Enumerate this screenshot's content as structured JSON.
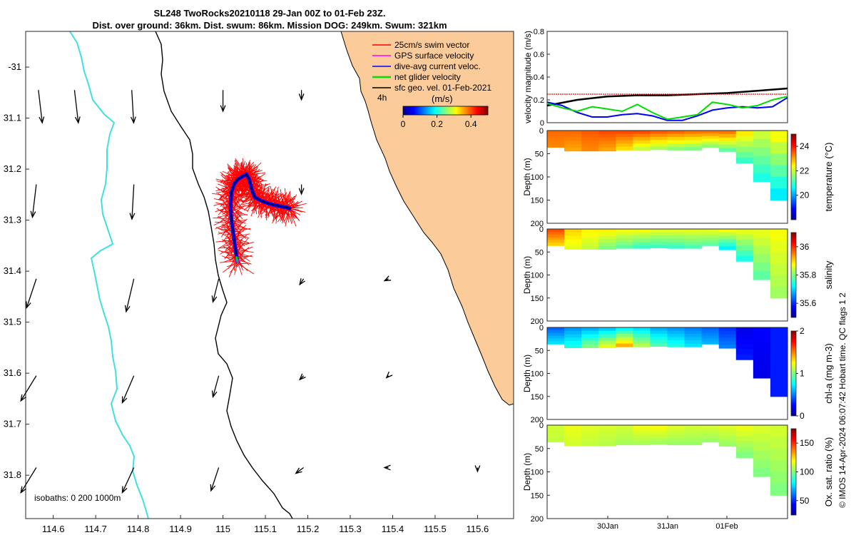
{
  "title": {
    "line1": "SL248 TwoRocks20210118 29-Jan 00Z to 01-Feb 23Z.",
    "line2": "Dist. over ground: 36km. Dist. swum: 86km. Mission DOG: 249km. Swum: 321km"
  },
  "credit": "© IMOS 14-Apr-2024 06:07:42 Hobart time. QC flags 1  2",
  "colors": {
    "land": "#fbcb9a",
    "isobath_shallow": "#40e0e0",
    "isobath_deep": "#000000",
    "swim_vector": "#ff0000",
    "gps_velocity": "#ff00ff",
    "dive_avg": "#0000ff",
    "net_velocity": "#00dd00",
    "sfc_geo": "#000000"
  },
  "chart_data": [
    {
      "type": "map",
      "x_ticks": [
        "114.6",
        "114.7",
        "114.8",
        "114.9",
        "115",
        "115.1",
        "115.2",
        "115.3",
        "115.4",
        "115.5",
        "115.6"
      ],
      "y_ticks": [
        "-31",
        "31.1",
        "31.2",
        "31.3",
        "31.4",
        "31.5",
        "31.6",
        "31.7",
        "31.8"
      ],
      "xlim": [
        114.535,
        115.685
      ],
      "ylim": [
        -31.885,
        -30.93
      ],
      "legend": {
        "entries": [
          "25cm/s swim vector",
          "GPS surface velocity",
          "dive-avg current veloc.",
          "net glider velocity",
          "sfc geo. vel. 01-Feb-2021"
        ],
        "time_step": "4h",
        "colorbar_label": "(m/s)",
        "colorbar_ticks": [
          "0",
          "0.2",
          "0.4"
        ],
        "colorbar_range": [
          0,
          0.5
        ]
      },
      "isobath_label": "isobaths: 0   200  1000m",
      "track": {
        "lon": [
          115.035,
          115.03,
          115.025,
          115.02,
          115.018,
          115.02,
          115.026,
          115.035,
          115.045,
          115.055,
          115.062,
          115.068,
          115.075,
          115.09,
          115.11,
          115.13,
          115.15,
          115.16
        ],
        "lat": [
          -31.385,
          -31.36,
          -31.33,
          -31.3,
          -31.27,
          -31.245,
          -31.23,
          -31.22,
          -31.215,
          -31.21,
          -31.22,
          -31.24,
          -31.255,
          -31.262,
          -31.268,
          -31.272,
          -31.275,
          -31.278
        ]
      },
      "current_vectors": [
        {
          "lon": 114.565,
          "lat": -31.045,
          "u": 0.02,
          "v": -0.17
        },
        {
          "lon": 114.65,
          "lat": -31.045,
          "u": 0.02,
          "v": -0.17
        },
        {
          "lon": 114.785,
          "lat": -31.045,
          "u": 0.01,
          "v": -0.17
        },
        {
          "lon": 115.0,
          "lat": -31.045,
          "u": 0.0,
          "v": -0.11
        },
        {
          "lon": 115.185,
          "lat": -31.045,
          "u": 0.0,
          "v": -0.05
        },
        {
          "lon": 114.56,
          "lat": -31.23,
          "u": -0.02,
          "v": -0.17
        },
        {
          "lon": 114.79,
          "lat": -31.23,
          "u": -0.01,
          "v": -0.18
        },
        {
          "lon": 115.185,
          "lat": -31.23,
          "u": 0.0,
          "v": -0.05
        },
        {
          "lon": 114.56,
          "lat": -31.415,
          "u": -0.05,
          "v": -0.15
        },
        {
          "lon": 114.79,
          "lat": -31.415,
          "u": -0.04,
          "v": -0.17
        },
        {
          "lon": 114.99,
          "lat": -31.415,
          "u": -0.03,
          "v": -0.12
        },
        {
          "lon": 115.19,
          "lat": -31.415,
          "u": -0.02,
          "v": -0.03
        },
        {
          "lon": 115.39,
          "lat": -31.415,
          "u": -0.02,
          "v": -0.01
        },
        {
          "lon": 114.56,
          "lat": -31.605,
          "u": -0.08,
          "v": -0.13
        },
        {
          "lon": 114.79,
          "lat": -31.605,
          "u": -0.06,
          "v": -0.14
        },
        {
          "lon": 114.99,
          "lat": -31.605,
          "u": -0.03,
          "v": -0.11
        },
        {
          "lon": 115.19,
          "lat": -31.605,
          "u": -0.02,
          "v": -0.02
        },
        {
          "lon": 115.39,
          "lat": -31.605,
          "u": -0.01,
          "v": -0.01
        },
        {
          "lon": 114.56,
          "lat": -31.785,
          "u": -0.08,
          "v": -0.13
        },
        {
          "lon": 114.79,
          "lat": -31.785,
          "u": -0.06,
          "v": -0.13
        },
        {
          "lon": 114.99,
          "lat": -31.785,
          "u": -0.04,
          "v": -0.12
        },
        {
          "lon": 115.19,
          "lat": -31.785,
          "u": -0.04,
          "v": -0.03
        },
        {
          "lon": 115.39,
          "lat": -31.785,
          "u": -0.02,
          "v": 0.0
        },
        {
          "lon": 115.6,
          "lat": -31.785,
          "u": 0.0,
          "v": -0.02
        }
      ]
    },
    {
      "type": "line",
      "ylabel": "velocity magnitude (m/s)",
      "ylim": [
        0,
        0.8
      ],
      "y_ticks": [
        "0",
        "0.2",
        "0.4",
        "0.6",
        "0.8"
      ],
      "xlim": [
        0,
        4
      ],
      "series": [
        {
          "color": "#000000",
          "x": [
            0,
            0.5,
            1,
            1.5,
            2,
            2.5,
            3,
            3.5,
            4
          ],
          "y": [
            0.15,
            0.2,
            0.23,
            0.24,
            0.24,
            0.25,
            0.26,
            0.28,
            0.3
          ]
        },
        {
          "color": "#ff0000",
          "x": [
            0,
            4
          ],
          "y": [
            0.25,
            0.25
          ]
        },
        {
          "color": "#0000ff",
          "x": [
            0,
            0.25,
            0.5,
            0.75,
            1,
            1.25,
            1.5,
            1.75,
            2,
            2.25,
            2.5,
            2.75,
            3,
            3.25,
            3.5,
            3.75,
            4
          ],
          "y": [
            0.18,
            0.15,
            0.09,
            0.05,
            0.05,
            0.07,
            0.08,
            0.06,
            0.02,
            0.02,
            0.06,
            0.11,
            0.13,
            0.14,
            0.13,
            0.14,
            0.22
          ]
        },
        {
          "color": "#00dd00",
          "x": [
            0,
            0.25,
            0.5,
            0.75,
            1,
            1.25,
            1.5,
            1.75,
            2,
            2.25,
            2.5,
            2.75,
            3,
            3.25,
            3.5,
            3.75,
            4
          ],
          "y": [
            0.17,
            0.13,
            0.1,
            0.14,
            0.12,
            0.1,
            0.16,
            0.09,
            0.03,
            0.05,
            0.07,
            0.18,
            0.16,
            0.13,
            0.15,
            0.2,
            0.23
          ]
        }
      ]
    },
    {
      "type": "heatmap",
      "ylabel": "Depth (m)",
      "ylim": [
        200,
        0
      ],
      "y_ticks": [
        "0",
        "50",
        "100",
        "150",
        "200"
      ],
      "colorbar_label": "temperature (°C)",
      "colorbar_range": [
        18,
        25
      ],
      "colorbar_ticks": [
        "20",
        "22",
        "24"
      ],
      "bottom_depth": [
        36,
        44,
        44,
        44,
        42,
        42,
        41,
        42,
        42,
        36,
        45,
        70,
        110,
        150
      ],
      "surface_values": [
        23.4,
        23.4,
        23.5,
        23.6,
        23.6,
        23.6,
        23.5,
        23.4,
        23.3,
        23.3,
        23.3,
        22.5,
        22.0,
        22.3
      ],
      "deep_values": [
        23.2,
        23.0,
        23.2,
        23.0,
        22.6,
        22.0,
        21.8,
        21.6,
        21.5,
        21.6,
        21.3,
        21.0,
        20.8,
        20.5
      ]
    },
    {
      "type": "heatmap",
      "ylabel": "Depth (m)",
      "ylim": [
        200,
        0
      ],
      "y_ticks": [
        "0",
        "50",
        "100",
        "150",
        "200"
      ],
      "colorbar_label": "salinity",
      "colorbar_range": [
        35.5,
        36.1
      ],
      "colorbar_ticks": [
        "35.6",
        "35.8",
        "36"
      ],
      "bottom_depth": [
        36,
        44,
        44,
        44,
        42,
        42,
        41,
        42,
        42,
        36,
        45,
        70,
        110,
        150
      ],
      "surface_values": [
        35.98,
        35.9,
        35.88,
        35.88,
        35.87,
        35.87,
        35.86,
        35.86,
        35.86,
        35.86,
        35.87,
        35.86,
        35.86,
        35.87
      ],
      "deep_values": [
        35.9,
        35.86,
        35.84,
        35.8,
        35.78,
        35.76,
        35.76,
        35.76,
        35.77,
        35.78,
        35.72,
        35.74,
        35.78,
        35.82
      ]
    },
    {
      "type": "heatmap",
      "ylabel": "Depth (m)",
      "ylim": [
        200,
        0
      ],
      "y_ticks": [
        "0",
        "50",
        "100",
        "150",
        "200"
      ],
      "colorbar_label": "chl-a (mg m-3)",
      "colorbar_range": [
        0,
        2
      ],
      "colorbar_ticks": [
        "0",
        "1",
        "2"
      ],
      "bottom_depth": [
        36,
        44,
        44,
        44,
        42,
        42,
        41,
        42,
        42,
        36,
        45,
        70,
        110,
        150
      ],
      "surface_values": [
        0.45,
        0.55,
        0.6,
        0.65,
        0.75,
        0.7,
        0.6,
        0.55,
        0.5,
        0.45,
        0.35,
        0.2,
        0.25,
        0.3
      ],
      "deep_values": [
        0.7,
        0.8,
        1.0,
        1.2,
        1.4,
        1.1,
        0.9,
        0.8,
        0.7,
        0.6,
        0.5,
        0.3,
        0.2,
        0.3
      ]
    },
    {
      "type": "heatmap",
      "ylabel": "Depth (m)",
      "ylim": [
        200,
        0
      ],
      "y_ticks": [
        "0",
        "50",
        "100",
        "150",
        "200"
      ],
      "x_ticks": [
        "30Jan",
        "31Jan",
        "01Feb"
      ],
      "colorbar_label": "Ox. sat. ratio (%)",
      "colorbar_range": [
        25,
        175
      ],
      "colorbar_ticks": [
        "50",
        "100",
        "150"
      ],
      "bottom_depth": [
        36,
        44,
        44,
        44,
        42,
        42,
        41,
        42,
        42,
        36,
        45,
        70,
        110,
        150
      ],
      "surface_values": [
        112,
        116,
        114,
        113,
        112,
        117,
        118,
        114,
        112,
        113,
        114,
        116,
        113,
        112
      ],
      "deep_values": [
        110,
        112,
        110,
        108,
        106,
        106,
        105,
        104,
        104,
        104,
        104,
        100,
        100,
        100
      ]
    }
  ]
}
